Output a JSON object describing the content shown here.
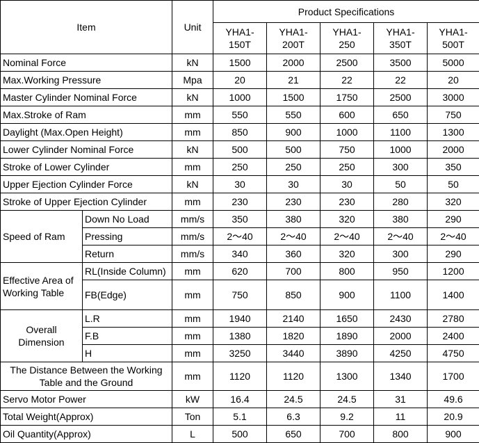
{
  "table": {
    "header": {
      "item": "Item",
      "unit": "Unit",
      "group": "Product Specifications",
      "models": [
        "YHA1-150T",
        "YHA1-200T",
        "YHA1-250",
        "YHA1-350T",
        "YHA1-500T"
      ]
    },
    "rows": [
      {
        "item": "Nominal Force",
        "unit": "kN",
        "values": [
          1500,
          2000,
          2500,
          3500,
          5000
        ]
      },
      {
        "item": "Max.Working Pressure",
        "unit": "Mpa",
        "values": [
          20,
          21,
          22,
          22,
          20
        ]
      },
      {
        "item": "Master Cylinder Nominal Force",
        "unit": "kN",
        "values": [
          1000,
          1500,
          1750,
          2500,
          3000
        ]
      },
      {
        "item": "Max.Stroke of Ram",
        "unit": "mm",
        "values": [
          550,
          550,
          600,
          650,
          750
        ]
      },
      {
        "item": "Daylight (Max.Open Height)",
        "unit": "mm",
        "values": [
          850,
          900,
          1000,
          1100,
          1300
        ]
      },
      {
        "item": "Lower Cylinder Nominal Force",
        "unit": "kN",
        "values": [
          500,
          500,
          750,
          1000,
          2000
        ]
      },
      {
        "item": "Stroke of Lower Cylinder",
        "unit": "mm",
        "values": [
          250,
          250,
          250,
          300,
          350
        ]
      },
      {
        "item": "Upper Ejection Cylinder Force",
        "unit": "kN",
        "values": [
          30,
          30,
          30,
          50,
          50
        ]
      },
      {
        "item": "Stroke of Upper Ejection Cylinder",
        "unit": "mm",
        "values": [
          230,
          230,
          230,
          280,
          320
        ]
      },
      {
        "item": "Speed of Ram",
        "subrows": [
          {
            "sub": "Down No Load",
            "unit": "mm/s",
            "values": [
              350,
              380,
              320,
              380,
              290
            ]
          },
          {
            "sub": "Pressing",
            "unit": "mm/s",
            "values": [
              "2～40",
              "2～40",
              "2～40",
              "2～40",
              "2～40"
            ]
          },
          {
            "sub": "Return",
            "unit": "mm/s",
            "values": [
              340,
              360,
              320,
              300,
              290
            ]
          }
        ]
      },
      {
        "item": "Effective Area of Working Table",
        "subrows": [
          {
            "sub": "RL(Inside Column)",
            "unit": "mm",
            "values": [
              620,
              700,
              800,
              950,
              1200
            ]
          },
          {
            "sub": "FB(Edge)",
            "unit": "mm",
            "values": [
              750,
              850,
              900,
              1100,
              1400
            ]
          }
        ]
      },
      {
        "item": "Overall Dimension",
        "subrows": [
          {
            "sub": "L.R",
            "unit": "mm",
            "values": [
              1940,
              2140,
              1650,
              2430,
              2780
            ]
          },
          {
            "sub": "F.B",
            "unit": "mm",
            "values": [
              1380,
              1820,
              1890,
              2000,
              2400
            ]
          },
          {
            "sub": "H",
            "unit": "mm",
            "values": [
              3250,
              3440,
              3890,
              4250,
              4750
            ]
          }
        ]
      },
      {
        "item": "The Distance Between the Working Table and the Ground",
        "unit": "mm",
        "values": [
          1120,
          1120,
          1300,
          1340,
          1700
        ]
      },
      {
        "item": "Servo Motor Power",
        "unit": "kW",
        "values": [
          16.4,
          24.5,
          24.5,
          31,
          49.6
        ]
      },
      {
        "item": "Total Weight(Approx)",
        "unit": "Ton",
        "values": [
          5.1,
          6.3,
          9.2,
          11,
          20.9
        ]
      },
      {
        "item": "Oil Quantity(Approx)",
        "unit": "L",
        "values": [
          500,
          650,
          700,
          800,
          900
        ]
      }
    ]
  }
}
